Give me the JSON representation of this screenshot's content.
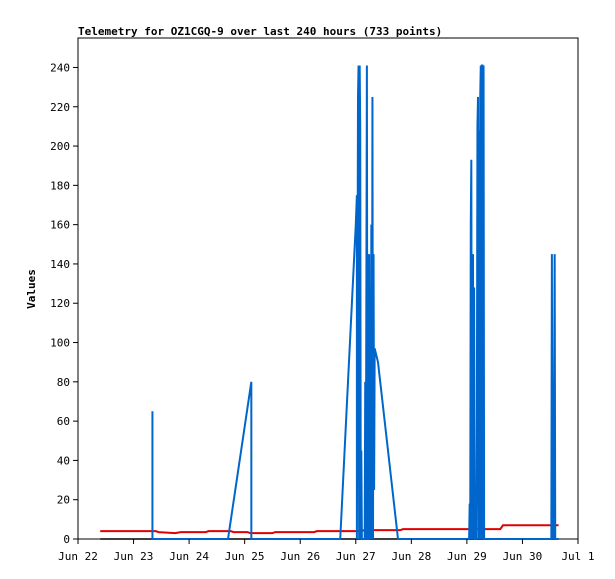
{
  "chart_data": {
    "type": "line",
    "title": "Telemetry for OZ1CGQ-9 over last 240 hours (733 points)",
    "xlabel": "",
    "ylabel": "Values",
    "x_unit": "days (Jun 22 = 0)",
    "xlim": [
      0,
      9
    ],
    "ylim": [
      0,
      255
    ],
    "x_ticks": [
      {
        "x": 0,
        "label": "Jun 22"
      },
      {
        "x": 1,
        "label": "Jun 23"
      },
      {
        "x": 2,
        "label": "Jun 24"
      },
      {
        "x": 3,
        "label": "Jun 25"
      },
      {
        "x": 4,
        "label": "Jun 26"
      },
      {
        "x": 5,
        "label": "Jun 27"
      },
      {
        "x": 6,
        "label": "Jun 28"
      },
      {
        "x": 7,
        "label": "Jun 29"
      },
      {
        "x": 8,
        "label": "Jun 30"
      },
      {
        "x": 9,
        "label": "Jul 1"
      }
    ],
    "y_ticks": [
      0,
      20,
      40,
      60,
      80,
      100,
      120,
      140,
      160,
      180,
      200,
      220,
      240
    ],
    "grid": false,
    "legend": false,
    "series": [
      {
        "color": "#000000",
        "points": [
          [
            0.4,
            0
          ],
          [
            8.65,
            0
          ]
        ]
      },
      {
        "color": "#e00000",
        "points": [
          [
            0.4,
            4
          ],
          [
            1.4,
            4
          ],
          [
            1.45,
            3.5
          ],
          [
            1.75,
            3
          ],
          [
            1.85,
            3.5
          ],
          [
            2.3,
            3.5
          ],
          [
            2.35,
            4
          ],
          [
            2.75,
            4
          ],
          [
            2.8,
            3.5
          ],
          [
            3.05,
            3.5
          ],
          [
            3.1,
            3
          ],
          [
            3.5,
            3
          ],
          [
            3.55,
            3.5
          ],
          [
            4.25,
            3.5
          ],
          [
            4.3,
            4
          ],
          [
            5.1,
            4
          ],
          [
            5.15,
            4.5
          ],
          [
            5.8,
            4.5
          ],
          [
            5.85,
            5
          ],
          [
            7.6,
            5
          ],
          [
            7.65,
            7
          ],
          [
            8.65,
            7
          ]
        ]
      },
      {
        "color": "#0066cc",
        "points": [
          [
            1.34,
            0
          ],
          [
            1.34,
            65
          ],
          [
            1.34,
            0
          ],
          [
            1.36,
            0
          ],
          [
            2.7,
            0
          ],
          [
            3.12,
            80
          ],
          [
            3.12,
            0
          ],
          [
            4.72,
            0
          ],
          [
            5.0,
            160
          ],
          [
            5.02,
            175
          ],
          [
            5.02,
            0
          ],
          [
            5.04,
            225
          ],
          [
            5.05,
            241
          ],
          [
            5.06,
            0
          ],
          [
            5.07,
            241
          ],
          [
            5.08,
            210
          ],
          [
            5.09,
            0
          ],
          [
            5.1,
            45
          ],
          [
            5.11,
            0
          ],
          [
            5.16,
            0
          ],
          [
            5.17,
            80
          ],
          [
            5.18,
            0
          ],
          [
            5.2,
            241
          ],
          [
            5.21,
            0
          ],
          [
            5.23,
            0
          ],
          [
            5.24,
            145
          ],
          [
            5.25,
            0
          ],
          [
            5.26,
            128
          ],
          [
            5.27,
            0
          ],
          [
            5.28,
            160
          ],
          [
            5.29,
            0
          ],
          [
            5.3,
            225
          ],
          [
            5.31,
            0
          ],
          [
            5.32,
            145
          ],
          [
            5.33,
            25
          ],
          [
            5.34,
            97
          ],
          [
            5.4,
            90
          ],
          [
            5.52,
            60
          ],
          [
            5.64,
            30
          ],
          [
            5.76,
            0
          ],
          [
            7.04,
            0
          ],
          [
            7.05,
            18
          ],
          [
            7.06,
            0
          ],
          [
            7.07,
            160
          ],
          [
            7.08,
            193
          ],
          [
            7.09,
            0
          ],
          [
            7.1,
            128
          ],
          [
            7.11,
            145
          ],
          [
            7.12,
            0
          ],
          [
            7.13,
            128
          ],
          [
            7.14,
            0
          ],
          [
            7.17,
            0
          ],
          [
            7.18,
            65
          ],
          [
            7.19,
            210
          ],
          [
            7.2,
            225
          ],
          [
            7.21,
            0
          ],
          [
            7.22,
            208
          ],
          [
            7.23,
            0
          ],
          [
            7.24,
            225
          ],
          [
            7.25,
            241
          ],
          [
            7.26,
            0
          ],
          [
            7.27,
            241
          ],
          [
            7.28,
            241
          ],
          [
            7.29,
            0
          ],
          [
            7.3,
            241
          ],
          [
            7.31,
            0
          ],
          [
            8.52,
            0
          ],
          [
            8.53,
            145
          ],
          [
            8.54,
            0
          ],
          [
            8.55,
            72
          ],
          [
            8.56,
            0
          ],
          [
            8.58,
            145
          ],
          [
            8.59,
            0
          ],
          [
            8.65,
            0
          ]
        ]
      }
    ]
  }
}
